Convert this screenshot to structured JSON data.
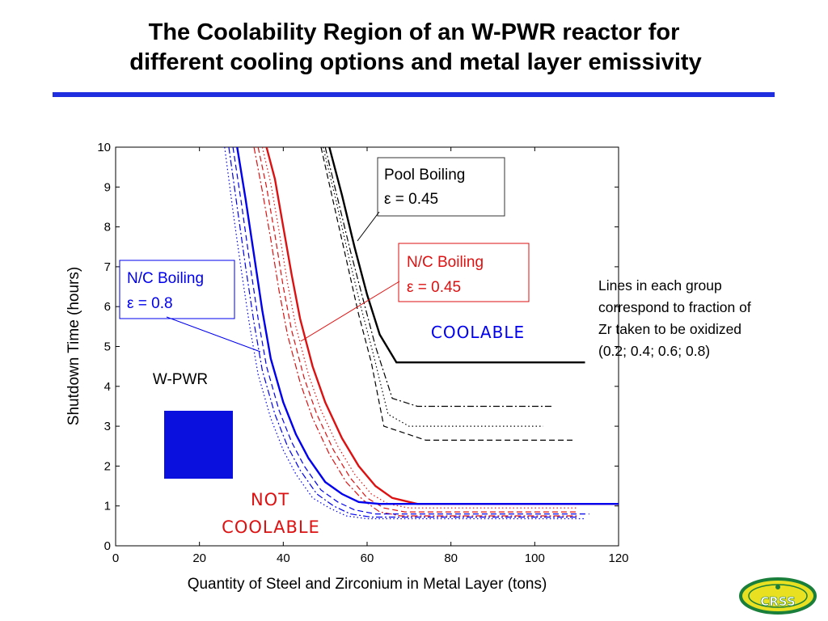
{
  "slide": {
    "title_line1": "The Coolability Region of an W-PWR reactor for",
    "title_line2": "different cooling options and metal layer emissivity",
    "note_lines": [
      "Lines in each group",
      "correspond to fraction of",
      "Zr taken to be oxidized",
      "(0.2; 0.4; 0.6; 0.8)"
    ],
    "logo_text": "CRSS",
    "colors": {
      "title_rule": "#1f2fe0",
      "blue": "#0000ee",
      "red": "#dd1111",
      "black": "#000000"
    }
  },
  "chart_data": {
    "type": "line",
    "xlabel": "Quantity of Steel and Zirconium in Metal Layer (tons)",
    "ylabel": "Shutdown Time (hours)",
    "xlim": [
      0,
      120
    ],
    "ylim": [
      0,
      10
    ],
    "xticks": [
      0,
      20,
      40,
      60,
      80,
      100,
      120
    ],
    "yticks": [
      0,
      1,
      2,
      3,
      4,
      5,
      6,
      7,
      8,
      9,
      10
    ],
    "grid": false,
    "region_labels": {
      "coolable": "COOLABLE",
      "not_coolable_line1": "NOT",
      "not_coolable_line2": "COOLABLE",
      "reactor": "W-PWR"
    },
    "callouts": [
      {
        "line1": "Pool Boiling",
        "line2": "ε = 0.45",
        "color": "#000000"
      },
      {
        "line1": "N/C Boiling",
        "line2": "ε = 0.45",
        "color": "#dd1111"
      },
      {
        "line1": "N/C Boiling",
        "line2": "ε = 0.8",
        "color": "#0000ee"
      }
    ],
    "series": [
      {
        "group": "pool-0.45",
        "color": "#000000",
        "style": "solid",
        "x": [
          51,
          54,
          57,
          60,
          63,
          67,
          112
        ],
        "y": [
          10,
          8.8,
          7.5,
          6.3,
          5.3,
          4.6,
          4.6
        ]
      },
      {
        "group": "pool-0.45",
        "color": "#000000",
        "style": "dashdot",
        "x": [
          50,
          53,
          56,
          59,
          62,
          66,
          72,
          104
        ],
        "y": [
          10,
          8.7,
          7.4,
          6.2,
          5.0,
          3.7,
          3.5,
          3.5
        ]
      },
      {
        "group": "pool-0.45",
        "color": "#000000",
        "style": "dotted",
        "x": [
          49.5,
          52.5,
          55.5,
          58.5,
          61.5,
          65,
          70,
          102
        ],
        "y": [
          10,
          8.7,
          7.3,
          6.0,
          4.8,
          3.3,
          3.0,
          3.0
        ]
      },
      {
        "group": "pool-0.45",
        "color": "#000000",
        "style": "dashed",
        "x": [
          49,
          52,
          55,
          58,
          61,
          64,
          74,
          109
        ],
        "y": [
          10,
          8.6,
          7.2,
          5.8,
          4.6,
          3.0,
          2.65,
          2.65
        ]
      },
      {
        "group": "nc-0.45",
        "color": "#dd1111",
        "style": "solid",
        "x": [
          36,
          38,
          40,
          42,
          44,
          47,
          50,
          54,
          58,
          62,
          66,
          72,
          120
        ],
        "y": [
          10,
          9.2,
          8.0,
          6.8,
          5.7,
          4.5,
          3.6,
          2.7,
          2.0,
          1.5,
          1.2,
          1.05,
          1.05
        ]
      },
      {
        "group": "nc-0.45",
        "color": "#dd1111",
        "style": "dotted",
        "x": [
          35,
          37,
          39,
          41,
          43,
          46,
          49,
          53,
          57,
          61,
          65,
          70,
          110
        ],
        "y": [
          10,
          9.1,
          7.9,
          6.6,
          5.5,
          4.3,
          3.4,
          2.5,
          1.8,
          1.3,
          1.05,
          0.95,
          0.95
        ]
      },
      {
        "group": "nc-0.45",
        "color": "#dd1111",
        "style": "dashed",
        "x": [
          34,
          36,
          38,
          40,
          42,
          45,
          48,
          52,
          56,
          60,
          64,
          69,
          110
        ],
        "y": [
          10,
          9.0,
          7.8,
          6.5,
          5.4,
          4.2,
          3.3,
          2.4,
          1.7,
          1.2,
          0.95,
          0.85,
          0.85
        ]
      },
      {
        "group": "nc-0.45",
        "color": "#dd1111",
        "style": "dashdot",
        "x": [
          33,
          35,
          37,
          39,
          41,
          44,
          47,
          51,
          55,
          59,
          63,
          68,
          110
        ],
        "y": [
          10,
          8.9,
          7.7,
          6.4,
          5.3,
          4.1,
          3.2,
          2.3,
          1.6,
          1.15,
          0.85,
          0.75,
          0.75
        ]
      },
      {
        "group": "nc-0.8",
        "color": "#0000ee",
        "style": "solid",
        "x": [
          29,
          31,
          33,
          35,
          37,
          40,
          43,
          46,
          50,
          54,
          58,
          63,
          120
        ],
        "y": [
          10,
          8.7,
          7.3,
          5.9,
          4.7,
          3.6,
          2.8,
          2.2,
          1.6,
          1.3,
          1.1,
          1.05,
          1.05
        ]
      },
      {
        "group": "nc-0.8",
        "color": "#0000ee",
        "style": "dashed",
        "x": [
          28,
          30,
          32,
          34,
          36,
          39,
          42,
          45,
          49,
          53,
          57,
          62,
          113
        ],
        "y": [
          10,
          8.6,
          7.1,
          5.7,
          4.5,
          3.4,
          2.6,
          2.0,
          1.4,
          1.1,
          0.9,
          0.8,
          0.8
        ]
      },
      {
        "group": "nc-0.8",
        "color": "#0000ee",
        "style": "dashdot",
        "x": [
          27,
          29,
          31,
          33,
          35,
          38,
          41,
          44,
          48,
          52,
          56,
          61,
          110
        ],
        "y": [
          10,
          8.5,
          7.0,
          5.6,
          4.4,
          3.3,
          2.5,
          1.9,
          1.3,
          1.0,
          0.8,
          0.72,
          0.72
        ]
      },
      {
        "group": "nc-0.8",
        "color": "#0000ee",
        "style": "dotted",
        "x": [
          26,
          28,
          30,
          32,
          34,
          37,
          40,
          43,
          47,
          51,
          55,
          60,
          112
        ],
        "y": [
          10,
          8.4,
          6.9,
          5.5,
          4.3,
          3.2,
          2.4,
          1.8,
          1.2,
          0.95,
          0.75,
          0.68,
          0.68
        ]
      }
    ]
  }
}
